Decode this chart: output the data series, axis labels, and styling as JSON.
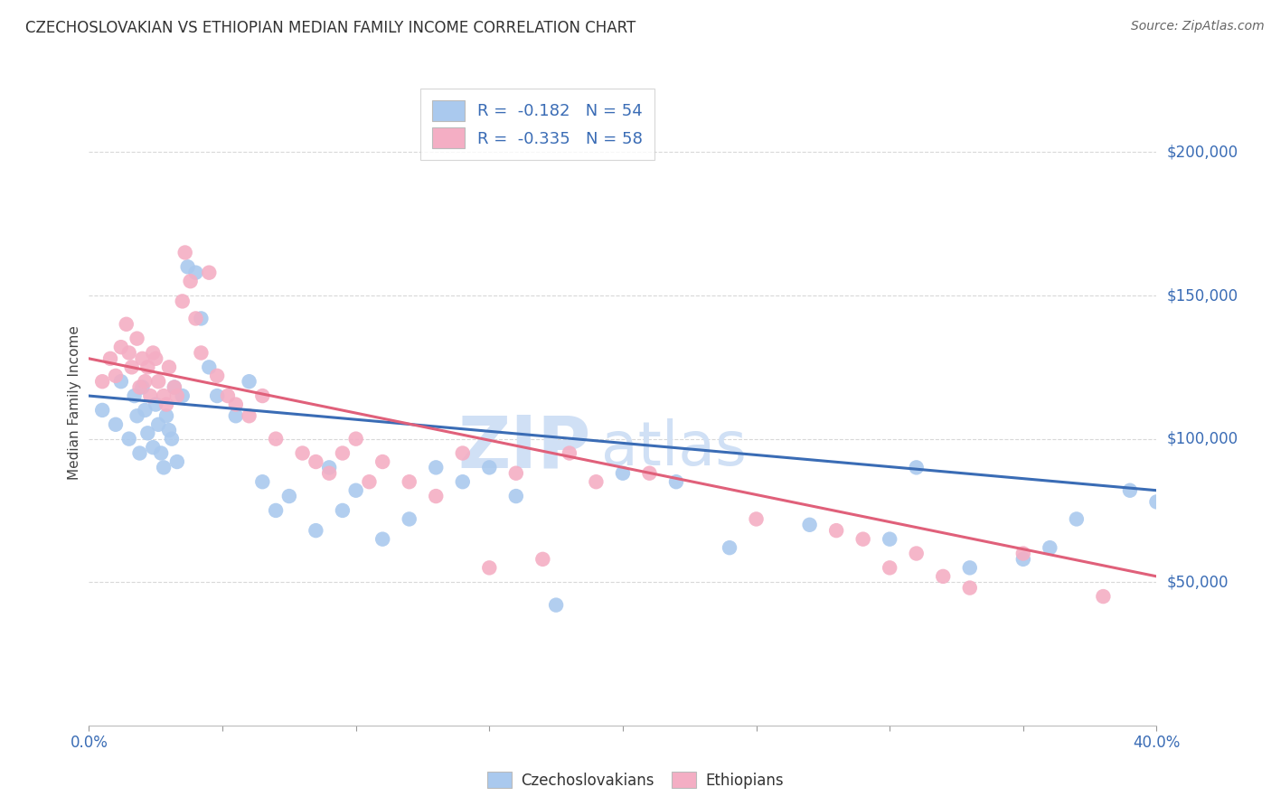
{
  "title": "CZECHOSLOVAKIAN VS ETHIOPIAN MEDIAN FAMILY INCOME CORRELATION CHART",
  "source": "Source: ZipAtlas.com",
  "ylabel_label": "Median Family Income",
  "x_min": 0.0,
  "x_max": 0.4,
  "y_min": 0,
  "y_max": 225000,
  "y_ticks": [
    50000,
    100000,
    150000,
    200000
  ],
  "y_tick_labels": [
    "$50,000",
    "$100,000",
    "$150,000",
    "$200,000"
  ],
  "blue_color": "#aac9ee",
  "pink_color": "#f4aec4",
  "blue_line_color": "#3a6cb5",
  "pink_line_color": "#e0607a",
  "watermark_color": "#d0e0f5",
  "background_color": "#ffffff",
  "grid_color": "#d8d8d8",
  "blue_scatter_x": [
    0.005,
    0.01,
    0.012,
    0.015,
    0.017,
    0.018,
    0.019,
    0.02,
    0.021,
    0.022,
    0.024,
    0.025,
    0.026,
    0.027,
    0.028,
    0.029,
    0.03,
    0.031,
    0.032,
    0.033,
    0.035,
    0.037,
    0.04,
    0.042,
    0.045,
    0.048,
    0.055,
    0.06,
    0.065,
    0.07,
    0.075,
    0.085,
    0.09,
    0.095,
    0.1,
    0.11,
    0.12,
    0.13,
    0.14,
    0.15,
    0.16,
    0.175,
    0.2,
    0.22,
    0.24,
    0.27,
    0.3,
    0.31,
    0.33,
    0.35,
    0.36,
    0.37,
    0.39,
    0.4
  ],
  "blue_scatter_y": [
    110000,
    105000,
    120000,
    100000,
    115000,
    108000,
    95000,
    118000,
    110000,
    102000,
    97000,
    112000,
    105000,
    95000,
    90000,
    108000,
    103000,
    100000,
    118000,
    92000,
    115000,
    160000,
    158000,
    142000,
    125000,
    115000,
    108000,
    120000,
    85000,
    75000,
    80000,
    68000,
    90000,
    75000,
    82000,
    65000,
    72000,
    90000,
    85000,
    90000,
    80000,
    42000,
    88000,
    85000,
    62000,
    70000,
    65000,
    90000,
    55000,
    58000,
    62000,
    72000,
    82000,
    78000
  ],
  "pink_scatter_x": [
    0.005,
    0.008,
    0.01,
    0.012,
    0.014,
    0.015,
    0.016,
    0.018,
    0.019,
    0.02,
    0.021,
    0.022,
    0.023,
    0.024,
    0.025,
    0.026,
    0.028,
    0.029,
    0.03,
    0.032,
    0.033,
    0.035,
    0.036,
    0.038,
    0.04,
    0.042,
    0.045,
    0.048,
    0.052,
    0.055,
    0.06,
    0.065,
    0.07,
    0.08,
    0.085,
    0.09,
    0.095,
    0.1,
    0.105,
    0.11,
    0.12,
    0.13,
    0.14,
    0.15,
    0.16,
    0.17,
    0.18,
    0.19,
    0.21,
    0.25,
    0.28,
    0.29,
    0.3,
    0.31,
    0.32,
    0.33,
    0.35,
    0.38
  ],
  "pink_scatter_y": [
    120000,
    128000,
    122000,
    132000,
    140000,
    130000,
    125000,
    135000,
    118000,
    128000,
    120000,
    125000,
    115000,
    130000,
    128000,
    120000,
    115000,
    112000,
    125000,
    118000,
    115000,
    148000,
    165000,
    155000,
    142000,
    130000,
    158000,
    122000,
    115000,
    112000,
    108000,
    115000,
    100000,
    95000,
    92000,
    88000,
    95000,
    100000,
    85000,
    92000,
    85000,
    80000,
    95000,
    55000,
    88000,
    58000,
    95000,
    85000,
    88000,
    72000,
    68000,
    65000,
    55000,
    60000,
    52000,
    48000,
    60000,
    45000
  ],
  "blue_trend_x": [
    0.0,
    0.4
  ],
  "blue_trend_y": [
    115000,
    82000
  ],
  "pink_trend_x": [
    0.0,
    0.4
  ],
  "pink_trend_y": [
    128000,
    52000
  ]
}
